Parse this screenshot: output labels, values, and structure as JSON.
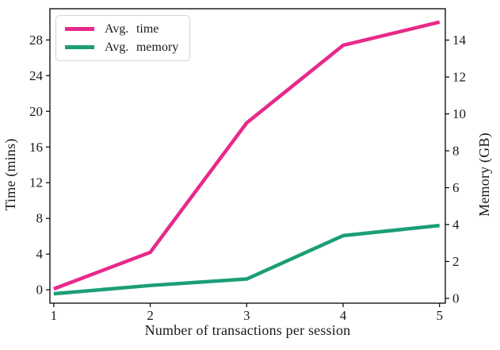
{
  "chart_data": {
    "type": "line",
    "title": "",
    "xlabel": "Number of transactions per session",
    "x": [
      1,
      2,
      3,
      4,
      5
    ],
    "series": [
      {
        "name": "Avg. time",
        "axis": "left",
        "color": "#e7298a",
        "values": [
          0.1,
          4.2,
          18.7,
          27.4,
          30.0
        ]
      },
      {
        "name": "Avg. memory",
        "axis": "right",
        "color": "#1b9e77",
        "values": [
          0.25,
          0.7,
          1.05,
          3.4,
          3.95
        ]
      }
    ],
    "axes": {
      "x": {
        "ticks": [
          1,
          2,
          3,
          4,
          5
        ],
        "range": [
          0.96,
          5.06
        ]
      },
      "left": {
        "label": "Time (mins)",
        "ticks": [
          0,
          4,
          8,
          12,
          16,
          20,
          24,
          28
        ],
        "range": [
          -1.5,
          31.5
        ]
      },
      "right": {
        "label": "Memory (GB)",
        "ticks": [
          0,
          2,
          4,
          6,
          8,
          10,
          12,
          14
        ],
        "range": [
          -0.26,
          15.7
        ]
      }
    },
    "legend": {
      "position": "upper-left",
      "items": [
        "Avg. time",
        "Avg. memory"
      ]
    },
    "grid": false,
    "background": "#ffffff",
    "line_width": 4.5,
    "spine_color": "#000000"
  }
}
